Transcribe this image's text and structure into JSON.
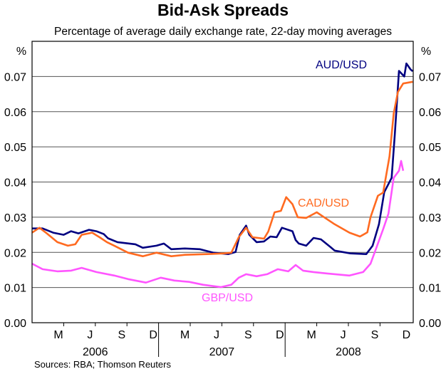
{
  "chart_data": {
    "type": "line",
    "title": "Bid-Ask Spreads",
    "subtitle": "Percentage of average daily exchange rate, 22-day moving averages",
    "ylabel_left": "%",
    "ylabel_right": "%",
    "ylim": [
      0,
      0.08
    ],
    "yticks": [
      "0.00",
      "0.01",
      "0.02",
      "0.03",
      "0.04",
      "0.05",
      "0.06",
      "0.07"
    ],
    "x_unit": "months since Jan 2006",
    "xlim": [
      0,
      36.15
    ],
    "month_ticks": [
      {
        "label": "M",
        "m": 2
      },
      {
        "label": "J",
        "m": 5
      },
      {
        "label": "S",
        "m": 8
      },
      {
        "label": "D",
        "m": 11
      },
      {
        "label": "M",
        "m": 14
      },
      {
        "label": "J",
        "m": 17
      },
      {
        "label": "S",
        "m": 20
      },
      {
        "label": "D",
        "m": 23
      },
      {
        "label": "M",
        "m": 26
      },
      {
        "label": "J",
        "m": 29
      },
      {
        "label": "S",
        "m": 32
      },
      {
        "label": "D",
        "m": 35
      }
    ],
    "years": [
      {
        "label": "2006",
        "start": 0
      },
      {
        "label": "2007",
        "start": 12
      },
      {
        "label": "2008",
        "start": 24
      }
    ],
    "grid": true,
    "series": [
      {
        "name": "AUD/USD",
        "color": "#000080",
        "x": [
          0,
          1.0,
          2.0,
          3.0,
          3.7,
          4.4,
          5.4,
          6.1,
          6.8,
          7.2,
          8.1,
          9.8,
          10.5,
          11.8,
          12.5,
          13.2,
          14.5,
          15.9,
          17.2,
          18.6,
          19.3,
          19.7,
          20.3,
          20.6,
          21.3,
          22.0,
          22.6,
          23.2,
          23.7,
          24.7,
          25.0,
          25.3,
          26.0,
          26.7,
          27.4,
          28.3,
          28.7,
          30.2,
          31.7,
          32.3,
          32.9,
          33.4,
          34.1,
          34.4,
          34.8,
          35.3,
          35.5,
          35.9,
          36.1
        ],
        "values": [
          0.0268,
          0.0268,
          0.0256,
          0.025,
          0.026,
          0.0254,
          0.0264,
          0.026,
          0.0252,
          0.024,
          0.0229,
          0.0223,
          0.0213,
          0.0219,
          0.0225,
          0.0209,
          0.0211,
          0.0209,
          0.0199,
          0.0195,
          0.0201,
          0.025,
          0.0276,
          0.025,
          0.0229,
          0.0231,
          0.0245,
          0.0243,
          0.027,
          0.026,
          0.0235,
          0.0225,
          0.0219,
          0.0241,
          0.0237,
          0.0215,
          0.0205,
          0.0197,
          0.0195,
          0.0219,
          0.028,
          0.0371,
          0.0412,
          0.0534,
          0.0716,
          0.07,
          0.0737,
          0.072,
          0.0715
        ]
      },
      {
        "name": "CAD/USD",
        "color": "#FF6A20",
        "x": [
          0,
          0.7,
          1.4,
          2.4,
          3.4,
          4.1,
          4.7,
          5.7,
          6.4,
          7.1,
          7.8,
          9.1,
          10.5,
          11.8,
          13.2,
          14.5,
          16.6,
          18.2,
          18.9,
          19.6,
          20.3,
          20.9,
          22.0,
          22.4,
          23.0,
          23.6,
          24.1,
          24.7,
          25.2,
          26.0,
          27.0,
          27.7,
          28.7,
          30.1,
          31.1,
          31.8,
          32.1,
          32.8,
          33.3,
          33.9,
          34.3,
          34.7,
          35.2,
          36.1
        ],
        "values": [
          0.0256,
          0.027,
          0.0254,
          0.0229,
          0.0219,
          0.0223,
          0.025,
          0.0256,
          0.0243,
          0.0229,
          0.0219,
          0.0199,
          0.0189,
          0.0199,
          0.0189,
          0.0193,
          0.0195,
          0.0197,
          0.0199,
          0.0243,
          0.027,
          0.0243,
          0.0239,
          0.0259,
          0.0314,
          0.0318,
          0.0357,
          0.0337,
          0.03,
          0.0298,
          0.0314,
          0.03,
          0.028,
          0.0256,
          0.0245,
          0.0257,
          0.03,
          0.0361,
          0.037,
          0.0473,
          0.0595,
          0.0656,
          0.068,
          0.0685
        ]
      },
      {
        "name": "GBP/USD",
        "color": "#FF55FF",
        "x": [
          0,
          1.0,
          2.4,
          3.7,
          4.7,
          6.1,
          7.8,
          9.1,
          10.8,
          12.2,
          13.5,
          14.9,
          16.2,
          17.9,
          18.9,
          19.6,
          20.3,
          21.3,
          22.3,
          23.3,
          24.3,
          25.0,
          25.7,
          26.7,
          28.0,
          30.1,
          31.4,
          32.1,
          32.8,
          33.3,
          33.8,
          34.3,
          34.8,
          35.0,
          35.2
        ],
        "values": [
          0.0168,
          0.0152,
          0.0146,
          0.0148,
          0.0156,
          0.0144,
          0.0134,
          0.0124,
          0.0114,
          0.0128,
          0.012,
          0.0116,
          0.0108,
          0.0101,
          0.0108,
          0.0128,
          0.0138,
          0.0132,
          0.0138,
          0.0152,
          0.0146,
          0.0164,
          0.0148,
          0.0144,
          0.014,
          0.0134,
          0.0144,
          0.0168,
          0.0225,
          0.0266,
          0.031,
          0.0412,
          0.0432,
          0.046,
          0.0432
        ]
      }
    ],
    "annotations": [
      "AUD/USD",
      "CAD/USD",
      "GBP/USD"
    ],
    "source": "Sources: RBA; Thomson Reuters"
  }
}
